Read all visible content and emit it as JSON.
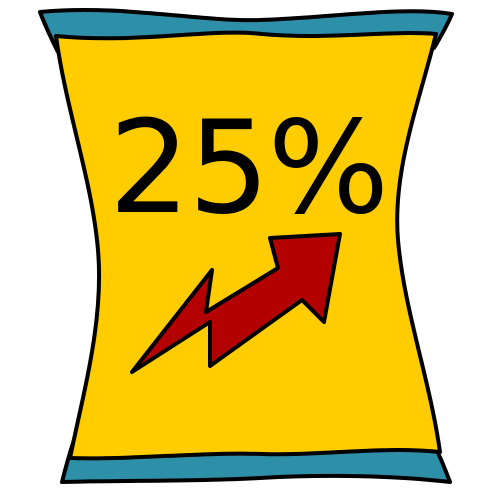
{
  "sticker": {
    "percentage": "25%",
    "arrow_direction": "up-right",
    "arrow_icon": "trending-up-zigzag-arrow-icon"
  },
  "colors": {
    "bag_fill": "#FFCC00",
    "crimp_fill": "#2E8FA8",
    "arrow_fill": "#B30000",
    "outline": "#000000",
    "text": "#000000",
    "background": "#FFFFFF"
  }
}
